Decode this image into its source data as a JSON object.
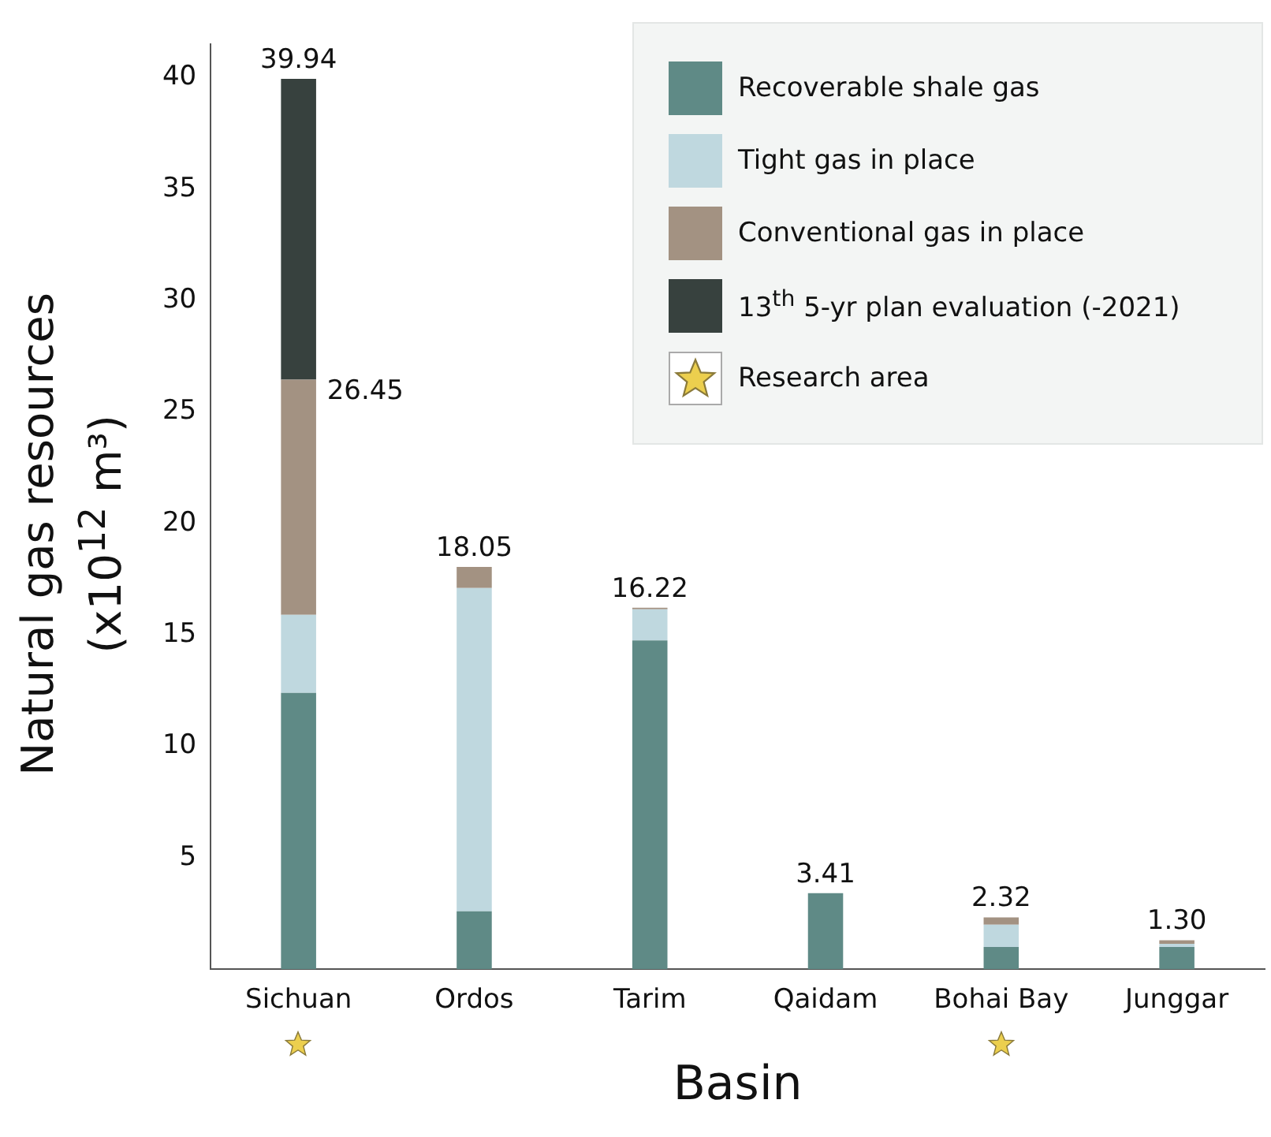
{
  "chart_data": {
    "type": "bar",
    "stacked": true,
    "xlabel": "Basin",
    "ylabel": "Natural gas resources\n(x10$^{12}$ m³)",
    "categories": [
      "Sichuan",
      "Ordos",
      "Tarim",
      "Qaidam",
      "Bohai Bay",
      "Junggar"
    ],
    "series": [
      {
        "name": "Recoverable shale gas",
        "color": "#5f8a86",
        "values": [
          12.4,
          2.6,
          14.75,
          3.41,
          1.0,
          1.0
        ]
      },
      {
        "name": "Tight gas in place",
        "color": "#bfd8df",
        "values": [
          3.5,
          14.5,
          1.4,
          null,
          1.0,
          0.14
        ]
      },
      {
        "name": "Conventional gas in place",
        "color": "#a39282",
        "values": [
          10.55,
          0.95,
          0.07,
          null,
          0.32,
          0.16
        ]
      },
      {
        "name": "13$^{th}$ 5-yr plan evaluation (-2021)",
        "color": "#37413e",
        "values": [
          13.49,
          null,
          null,
          null,
          null,
          null
        ]
      }
    ],
    "totals": [
      "39.94",
      "18.05",
      "16.22",
      "3.41",
      "2.32",
      "1.30"
    ],
    "annotations": [
      {
        "text": "26.45",
        "x": "Sichuan",
        "y": 26.45
      },
      "Research area"
    ],
    "ylim": [
      0,
      41.5
    ],
    "yticks": [
      5,
      10,
      15,
      20,
      25,
      30,
      35,
      40
    ],
    "grid": false,
    "legend": "top right"
  }
}
